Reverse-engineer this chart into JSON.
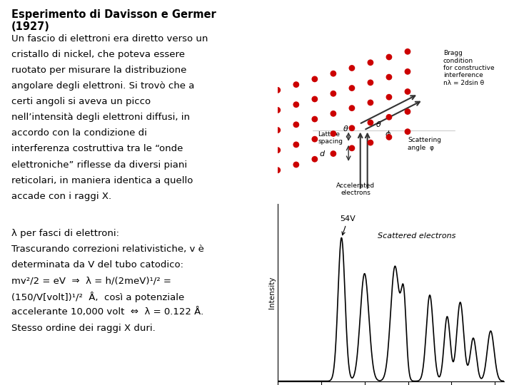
{
  "title_line1": "Esperimento di Davisson e Germer",
  "title_line2": "(1927)",
  "paragraph1": "Un fascio di elettroni era diretto verso un\ncristallo di nickel, che poteva essere\nruotato per misurare la distribuzione\nangolare degli elettroni. Si trovò che a\ncerti angoli si aveva un picco\nnell’intensità degli elettroni diffusi, in\naccordo con la condizione di\ninterferenza costruttiva tra le “onde\nelettroniche” riflesse da diversi piani\nreticolari, in maniera identica a quello\naccade con i raggi X.",
  "paragraph2_line1": "λ per fasci di elettroni:",
  "paragraph2_line2": "Trascurando correzioni relativistiche, v è\ndeterminata da V del tubo catodico:\nmv²/2 = eV ⇒ λ = h/(2meV)¹ᐟ² =\n(150/V[volt])¹/²  Å,  così a potenziale\naccelerante 10,000 volt ⇔ λ = 0.122 Å.\nStesso ordine dei raggi X duri.",
  "bg_color": "#ffffff",
  "text_color": "#000000",
  "font_size": 9.5,
  "title_font_size": 10.5
}
